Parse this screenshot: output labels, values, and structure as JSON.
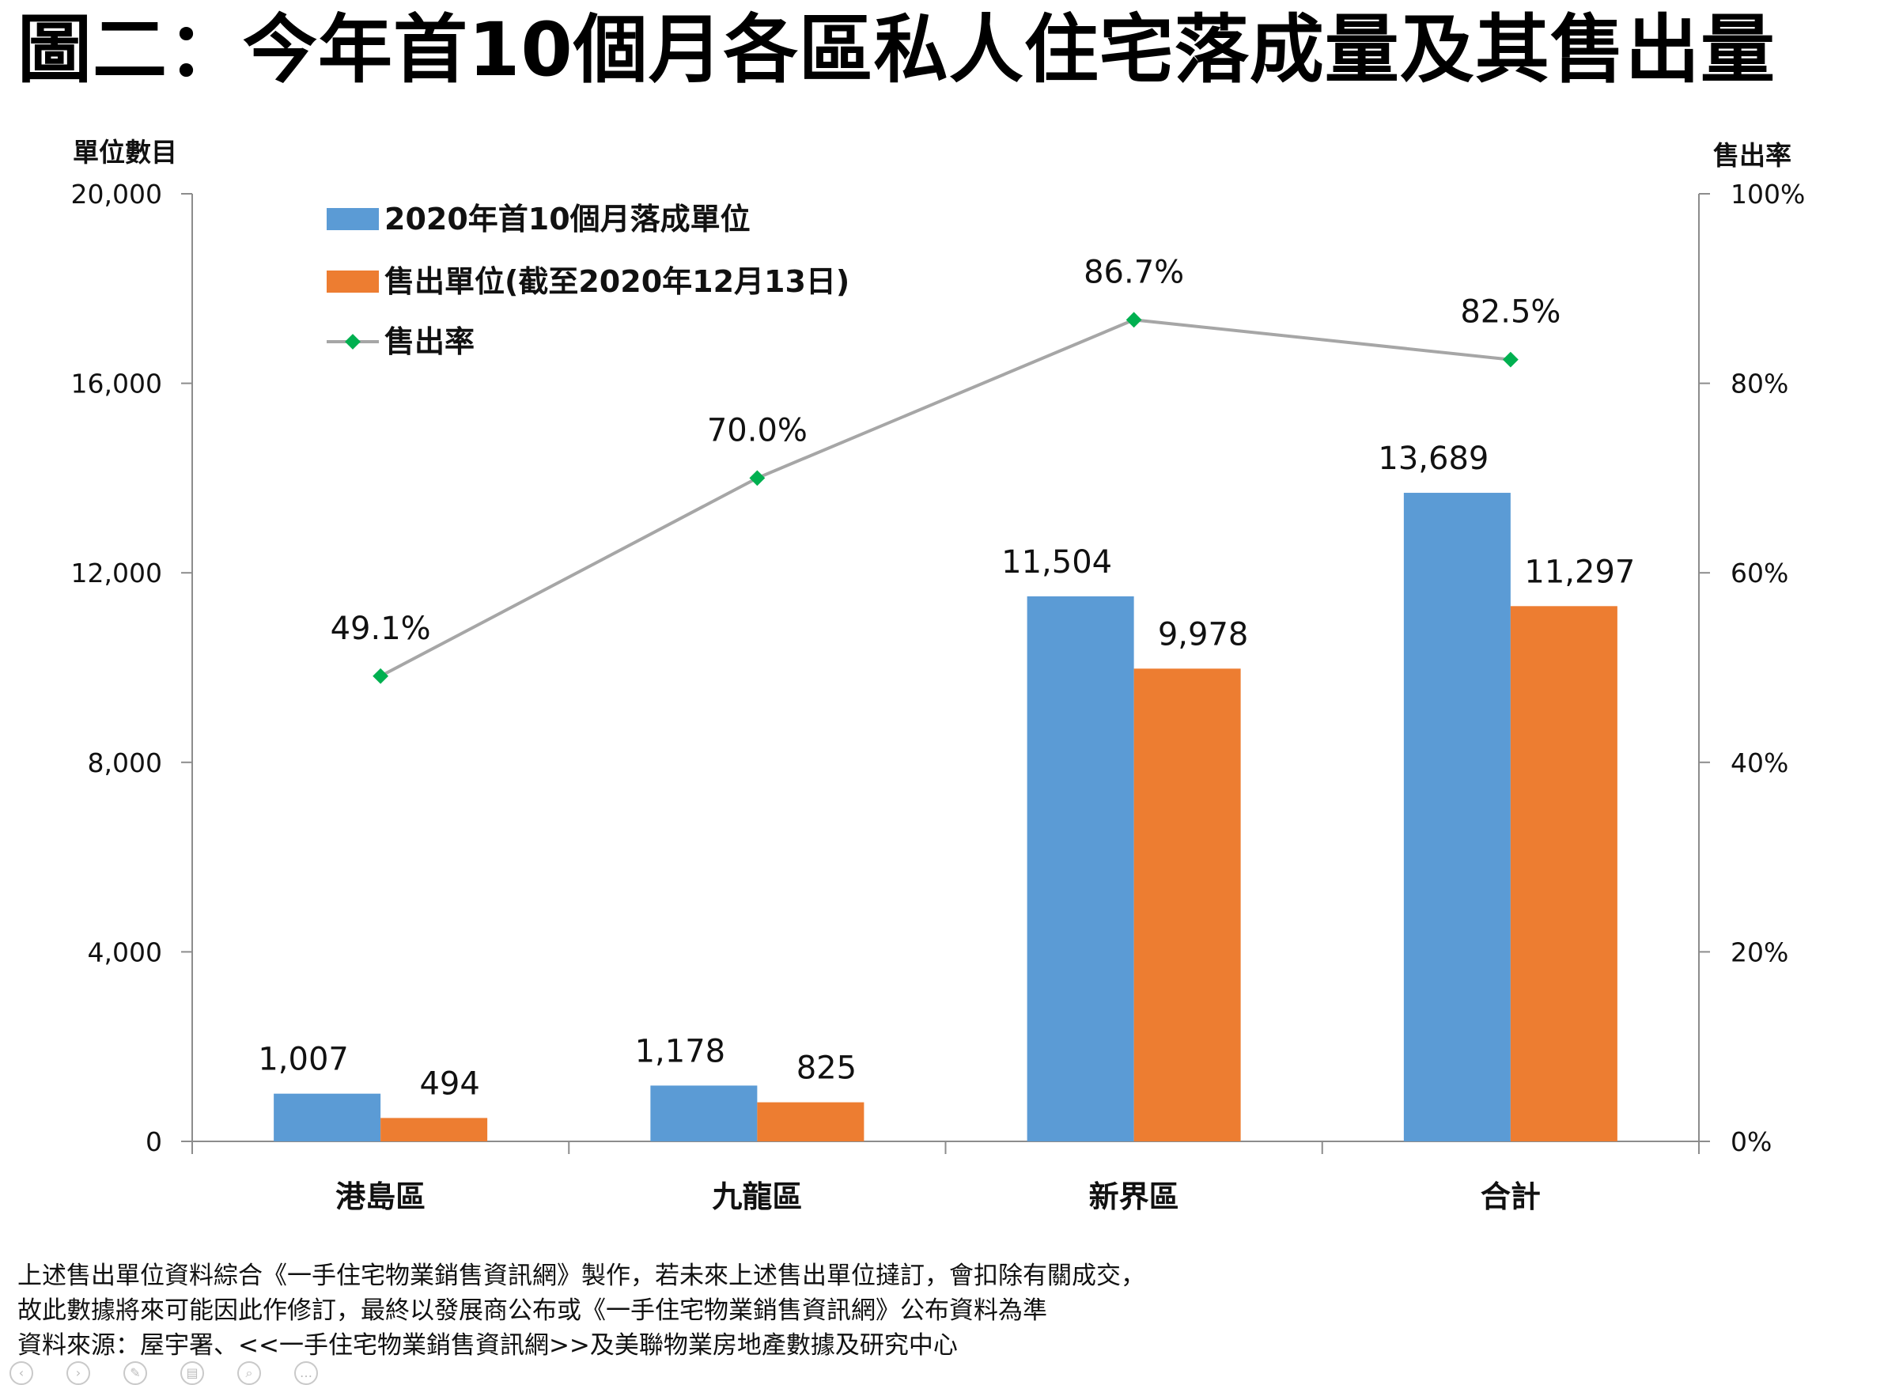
{
  "title": "圖二：今年首10個月各區私人住宅落成量及其售出量",
  "colors": {
    "completed": "#5b9bd5",
    "sold": "#ed7d31",
    "rate_line": "#a6a6a6",
    "rate_marker": "#00b050",
    "axis": "#8c8c8c"
  },
  "chart_data": {
    "type": "bar",
    "categories": [
      "港島區",
      "九龍區",
      "新界區",
      "合計"
    ],
    "series": [
      {
        "name": "2020年首10個月落成單位",
        "type": "bar",
        "axis": "left",
        "values": [
          1007,
          1178,
          11504,
          13689
        ],
        "labels": [
          "1,007",
          "1,178",
          "11,504",
          "13,689"
        ]
      },
      {
        "name": "售出單位(截至2020年12月13日)",
        "type": "bar",
        "axis": "left",
        "values": [
          494,
          825,
          9978,
          11297
        ],
        "labels": [
          "494",
          "825",
          "9,978",
          "11,297"
        ]
      },
      {
        "name": "售出率",
        "type": "line",
        "axis": "right",
        "values": [
          49.1,
          70.0,
          86.7,
          82.5
        ],
        "labels": [
          "49.1%",
          "70.0%",
          "86.7%",
          "82.5%"
        ]
      }
    ],
    "ylabel": "單位數目",
    "ylabel_right": "售出率",
    "ylim": [
      0,
      20000
    ],
    "ylim_right": [
      0,
      100
    ],
    "yticks": [
      0,
      4000,
      8000,
      12000,
      16000,
      20000
    ],
    "ytick_labels": [
      "0",
      "4,000",
      "8,000",
      "12,000",
      "16,000",
      "20,000"
    ],
    "yticks_right": [
      0,
      20,
      40,
      60,
      80,
      100
    ],
    "ytick_labels_right": [
      "0%",
      "20%",
      "40%",
      "60%",
      "80%",
      "100%"
    ],
    "legend_position": "top-left",
    "grid": false
  },
  "footnotes": [
    "上述售出單位資料綜合《一手住宅物業銷售資訊網》製作，若未來上述售出單位撻訂，會扣除有關成交，",
    "故此數據將來可能因此作修訂，最終以發展商公布或《一手住宅物業銷售資訊網》公布資料為準",
    "資料來源：屋宇署、<<一手住宅物業銷售資訊網>>及美聯物業房地產數據及研究中心"
  ]
}
